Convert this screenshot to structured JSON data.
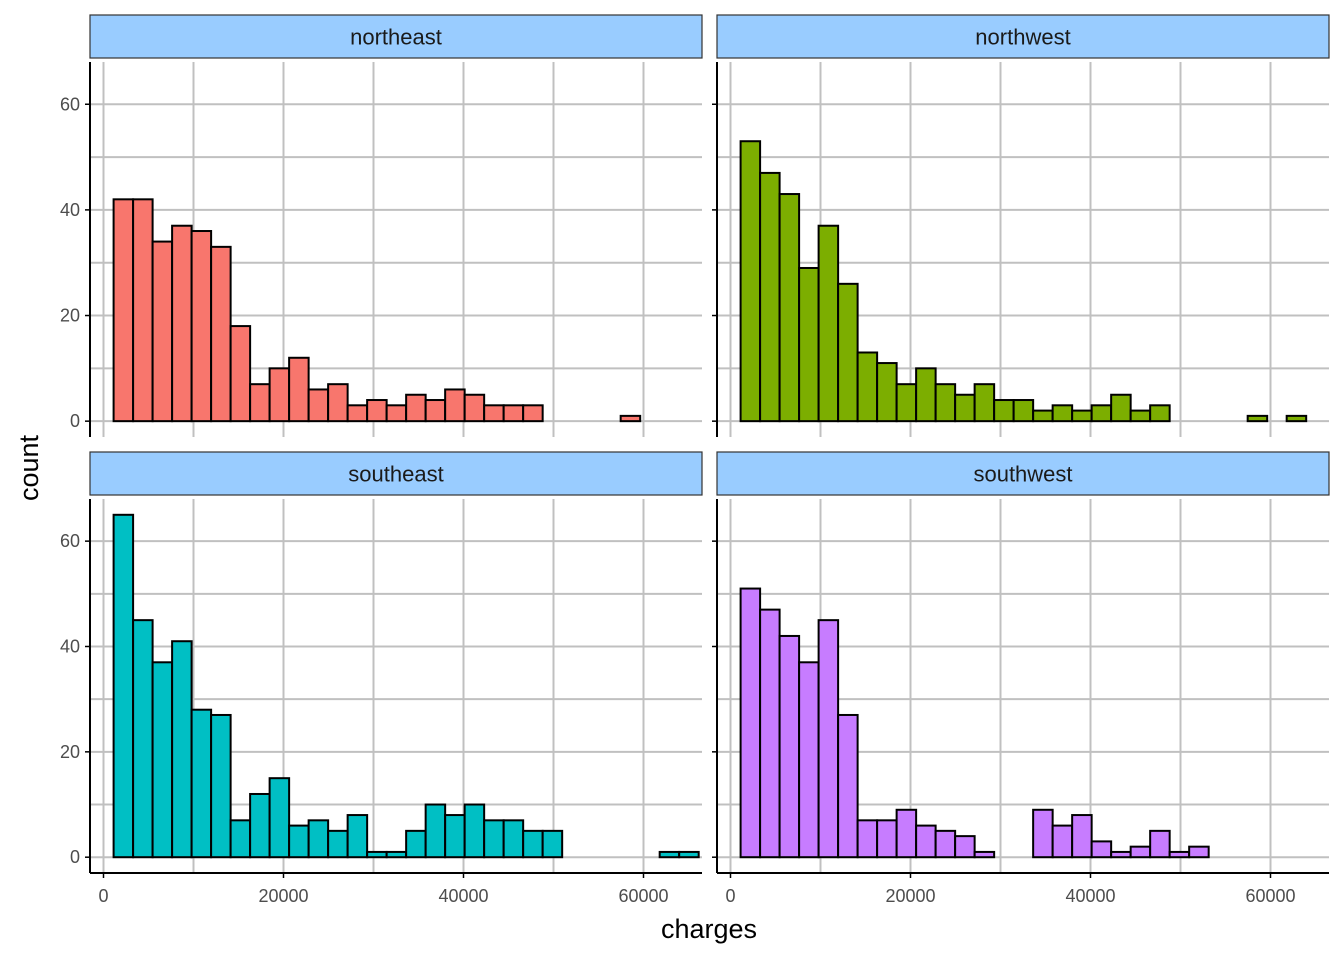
{
  "chart_data": {
    "type": "bar",
    "chart_kind": "faceted histogram",
    "xlabel": "charges",
    "ylabel": "count",
    "xlim": [
      -1500,
      66500
    ],
    "ylim": [
      -3,
      68
    ],
    "x_ticks": [
      0,
      20000,
      40000,
      60000
    ],
    "x_tick_labels": [
      "0",
      "20000",
      "40000",
      "60000"
    ],
    "y_ticks": [
      0,
      20,
      40,
      60
    ],
    "y_tick_labels": [
      "0",
      "20",
      "40",
      "60"
    ],
    "grid": true,
    "bin_start": 1122,
    "bin_width": 2167,
    "colors": {
      "strip_fill": "#99ccff",
      "grid": "#c0c0c0",
      "bar_outline": "#000000",
      "axis": "#000000"
    },
    "panels": [
      {
        "name": "northeast",
        "color": "#F8766D",
        "counts": [
          42,
          42,
          34,
          37,
          36,
          33,
          18,
          7,
          10,
          12,
          6,
          7,
          3,
          4,
          3,
          5,
          4,
          6,
          5,
          3,
          3,
          3,
          0,
          0,
          0,
          0,
          1,
          0,
          0,
          0
        ]
      },
      {
        "name": "northwest",
        "color": "#7CAE00",
        "counts": [
          53,
          47,
          43,
          29,
          37,
          26,
          13,
          11,
          7,
          10,
          7,
          5,
          7,
          4,
          4,
          2,
          3,
          2,
          3,
          5,
          2,
          3,
          0,
          0,
          0,
          0,
          1,
          0,
          1,
          0
        ]
      },
      {
        "name": "southeast",
        "color": "#00BFC4",
        "counts": [
          65,
          45,
          37,
          41,
          28,
          27,
          7,
          12,
          15,
          6,
          7,
          5,
          8,
          1,
          1,
          5,
          10,
          8,
          10,
          7,
          7,
          5,
          5,
          0,
          0,
          0,
          0,
          0,
          1,
          1
        ]
      },
      {
        "name": "southwest",
        "color": "#C77CFF",
        "counts": [
          51,
          47,
          42,
          37,
          45,
          27,
          7,
          7,
          9,
          6,
          5,
          4,
          1,
          0,
          0,
          9,
          6,
          8,
          3,
          1,
          2,
          5,
          1,
          2,
          0,
          0,
          0,
          0,
          0,
          0
        ]
      }
    ]
  }
}
